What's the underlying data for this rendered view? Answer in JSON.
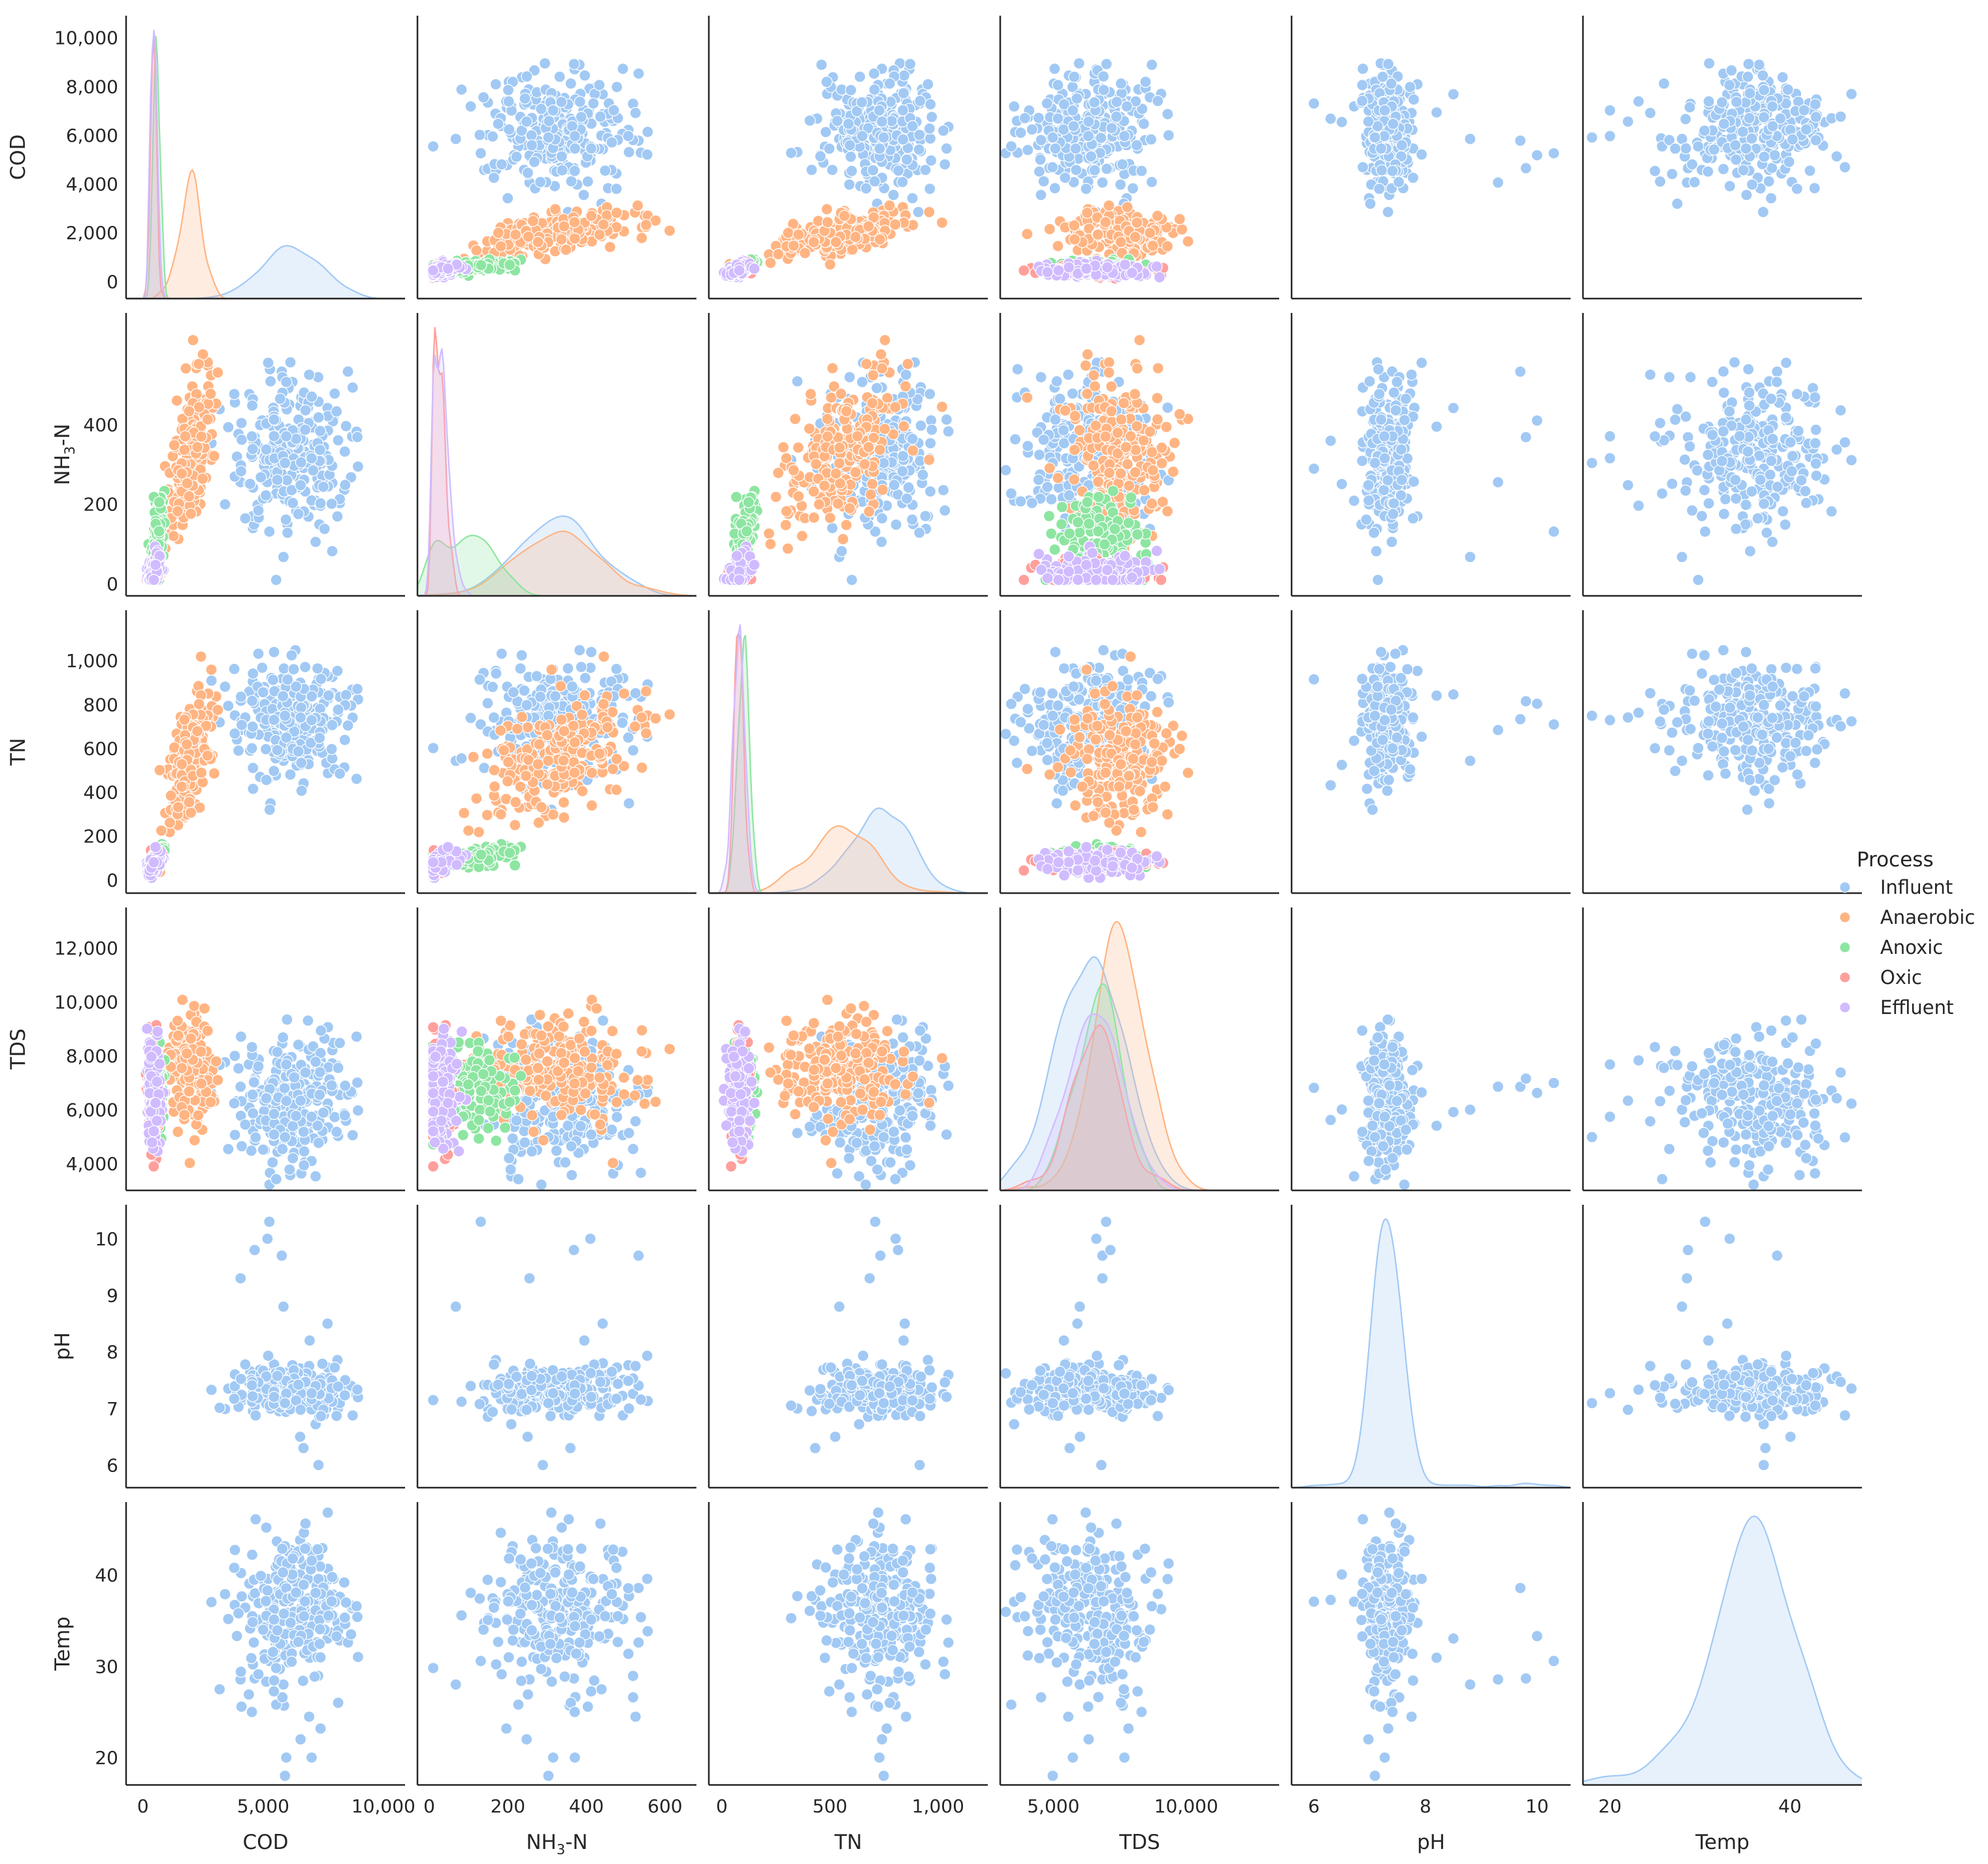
{
  "chart_data": {
    "type": "pairplot",
    "variables": [
      {
        "key": "COD",
        "label": "COD",
        "range": [
          -700,
          10900
        ],
        "ticks": [
          0,
          2000,
          4000,
          6000,
          8000,
          10000
        ],
        "x_ticks": [
          0,
          5000,
          10000
        ],
        "tick_labels": [
          "0",
          "2,000",
          "4,000",
          "6,000",
          "8,000",
          "10,000"
        ],
        "x_tick_labels": [
          "0",
          "5,000",
          "10,000"
        ]
      },
      {
        "key": "NH3N",
        "label": "NH3-N",
        "label_parts": [
          "NH",
          "3",
          "-N"
        ],
        "range": [
          -30,
          680
        ],
        "ticks": [
          0,
          200,
          400
        ],
        "x_ticks": [
          0,
          200,
          400,
          600
        ],
        "tick_labels": [
          "0",
          "200",
          "400"
        ],
        "x_tick_labels": [
          "0",
          "200",
          "400",
          "600"
        ]
      },
      {
        "key": "TN",
        "label": "TN",
        "range": [
          -60,
          1230
        ],
        "ticks": [
          0,
          200,
          400,
          600,
          800,
          1000
        ],
        "x_ticks": [
          0,
          500,
          1000
        ],
        "tick_labels": [
          "0",
          "200",
          "400",
          "600",
          "800",
          "1,000"
        ],
        "x_tick_labels": [
          "0",
          "500",
          "1,000"
        ]
      },
      {
        "key": "TDS",
        "label": "TDS",
        "range": [
          3000,
          13500
        ],
        "ticks": [
          4000,
          6000,
          8000,
          10000,
          12000
        ],
        "x_ticks": [
          5000,
          10000
        ],
        "tick_labels": [
          "4,000",
          "6,000",
          "8,000",
          "10,000",
          "12,000"
        ],
        "x_tick_labels": [
          "5,000",
          "10,000"
        ]
      },
      {
        "key": "pH",
        "label": "pH",
        "range": [
          5.6,
          10.6
        ],
        "ticks": [
          6,
          7,
          8,
          9,
          10
        ],
        "x_ticks": [
          6,
          8,
          10
        ],
        "tick_labels": [
          "6",
          "7",
          "8",
          "9",
          "10"
        ],
        "x_tick_labels": [
          "6",
          "8",
          "10"
        ]
      },
      {
        "key": "Temp",
        "label": "Temp",
        "range": [
          17,
          48
        ],
        "ticks": [
          20,
          30,
          40
        ],
        "x_ticks": [
          20,
          40
        ],
        "tick_labels": [
          "20",
          "30",
          "40"
        ],
        "x_tick_labels": [
          "20",
          "40"
        ]
      }
    ],
    "legend": {
      "title": "Process",
      "position": "right",
      "entries": [
        {
          "name": "Influent",
          "color": "#a1c9f4"
        },
        {
          "name": "Anaerobic",
          "color": "#ffb482"
        },
        {
          "name": "Anoxic",
          "color": "#8de5a1"
        },
        {
          "name": "Oxic",
          "color": "#ff9f9b"
        },
        {
          "name": "Effluent",
          "color": "#d0bbff"
        }
      ]
    },
    "series": [
      {
        "name": "Influent",
        "mean": {
          "COD": 6200,
          "NH3N": 330,
          "TN": 720,
          "TDS": 6300,
          "pH": 7.3,
          "Temp": 36
        },
        "spread": {
          "COD": 1150,
          "NH3N": 100,
          "TN": 140,
          "TDS": 1300,
          "pH": 0.3,
          "Temp": 4.5
        },
        "count": 260,
        "ph_outliers": [
          6,
          6.3,
          6.5,
          8.2,
          8.5,
          8.8,
          9.3,
          9.7,
          9.8,
          10,
          10.3
        ],
        "temp_outliers": [
          18,
          20,
          20,
          22,
          25,
          26
        ]
      },
      {
        "name": "Anaerobic",
        "mean": {
          "COD": 2000,
          "NH3N": 330,
          "TN": 560,
          "TDS": 7400
        },
        "spread": {
          "COD": 450,
          "NH3N": 100,
          "TN": 150,
          "TDS": 900
        },
        "count": 220
      },
      {
        "name": "Anoxic",
        "mean": {
          "COD": 550,
          "NH3N": 80,
          "TN": 100,
          "TDS": 6800
        },
        "spread": {
          "COD": 150,
          "NH3N": 70,
          "TN": 25,
          "TDS": 800
        },
        "count": 150
      },
      {
        "name": "Oxic",
        "mean": {
          "COD": 450,
          "NH3N": 25,
          "TN": 80,
          "TDS": 6600
        },
        "spread": {
          "COD": 120,
          "NH3N": 15,
          "TN": 20,
          "TDS": 900
        },
        "count": 130
      },
      {
        "name": "Effluent",
        "mean": {
          "COD": 450,
          "NH3N": 30,
          "TN": 80,
          "TDS": 6500
        },
        "spread": {
          "COD": 130,
          "NH3N": 20,
          "TN": 25,
          "TDS": 1000
        },
        "count": 160
      }
    ]
  }
}
